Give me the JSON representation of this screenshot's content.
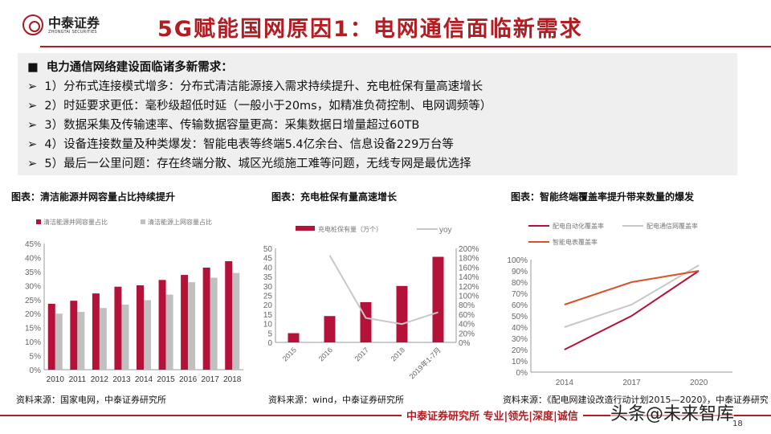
{
  "header": {
    "logo_cn": "中泰证券",
    "logo_en": "ZHONGTAI SECURITIES",
    "title": "5G赋能国网原因1：电网通信面临新需求"
  },
  "bullets": {
    "head_marker": "■",
    "head": "电力通信网络建设面临诸多新需求：",
    "marker": "➢",
    "items": [
      "1）分布式连接模式增多：分布式清洁能源接入需求持续提升、充电桩保有量高速增长",
      "2）时延要求更低：毫秒级超低时延（一般小于20ms，如精准负荷控制、电网调频等）",
      "3）数据采集及传输速率、传输数据容量更高：采集数据日增量超过60TB",
      "4）设备连接数量及种类爆发：智能电表等终端5.4亿余台、信息设备229万台等",
      "5）最后一公里问题：存在终端分散、城区光缆施工难等问题，无线专网是最优选择"
    ]
  },
  "charts": [
    {
      "title": "图表：清洁能源并网容量占比持续提升",
      "source": "资料来源：国家电网，中泰证券研究所"
    },
    {
      "title": "图表：充电桩保有量高速增长",
      "source": "资料来源：wind，中泰证券研究所"
    },
    {
      "title": "图表：智能终端覆盖率提升带来数量的爆发",
      "source": "资料来源：《配电网建设改造行动计划2015—2020》，中泰证券研究所"
    }
  ],
  "chart_data": [
    {
      "type": "bar",
      "categories": [
        "2010",
        "2011",
        "2012",
        "2013",
        "2014",
        "2015",
        "2016",
        "2017",
        "2018"
      ],
      "series": [
        {
          "name": "清洁能源并网容量占比",
          "values": [
            23.5,
            24.6,
            27.2,
            29.6,
            30.1,
            32.0,
            33.8,
            36.4,
            38.7
          ],
          "color": "#b5123a"
        },
        {
          "name": "清洁能源上网容量占比",
          "values": [
            20.0,
            20.6,
            22.0,
            23.2,
            24.8,
            26.8,
            31.2,
            32.8,
            34.5
          ],
          "color": "#c0c0c0"
        }
      ],
      "ylim": [
        0,
        45
      ],
      "yticks": [
        "0%",
        "5%",
        "10%",
        "15%",
        "20%",
        "25%",
        "30%",
        "35%",
        "40%",
        "45%"
      ],
      "legend": "top"
    },
    {
      "type": "bar+line",
      "categories": [
        "2015",
        "2016",
        "2017",
        "2018",
        "2019年1-7月"
      ],
      "series": [
        {
          "name": "充电桩保有量（万个）",
          "type": "bar",
          "axis": "left",
          "values": [
            4.9,
            14.0,
            21.4,
            30.0,
            45.5
          ],
          "color": "#b5123a"
        },
        {
          "name": "yoy",
          "type": "line",
          "axis": "right",
          "values": [
            null,
            185,
            52,
            39,
            64
          ],
          "color": "#c8c8c8"
        }
      ],
      "ylim": [
        0,
        50
      ],
      "yticks": [
        "0",
        "5",
        "10",
        "15",
        "20",
        "25",
        "30",
        "35",
        "40",
        "45",
        "50"
      ],
      "y2lim": [
        0,
        200
      ],
      "y2ticks": [
        "0%",
        "20%",
        "40%",
        "60%",
        "80%",
        "100%",
        "120%",
        "140%",
        "160%",
        "180%",
        "200%"
      ],
      "legend": "top"
    },
    {
      "type": "line",
      "categories": [
        "2014",
        "2017",
        "2020"
      ],
      "series": [
        {
          "name": "配电自动化覆盖率",
          "values": [
            20,
            50,
            90
          ],
          "color": "#b5123a"
        },
        {
          "name": "配电通信网覆盖率",
          "values": [
            40,
            60,
            95
          ],
          "color": "#c8c8c8"
        },
        {
          "name": "智能电表覆盖率",
          "values": [
            60,
            80,
            90
          ],
          "color": "#d9532a"
        }
      ],
      "ylim": [
        0,
        100
      ],
      "yticks": [
        "0%",
        "10%",
        "20%",
        "30%",
        "40%",
        "50%",
        "60%",
        "70%",
        "80%",
        "90%",
        "100%"
      ],
      "legend": "top"
    }
  ],
  "footer": {
    "slogan": "中泰证券研究所  专业|领先|深度|诚信",
    "watermark": "头条@未来智库",
    "page": "18"
  }
}
